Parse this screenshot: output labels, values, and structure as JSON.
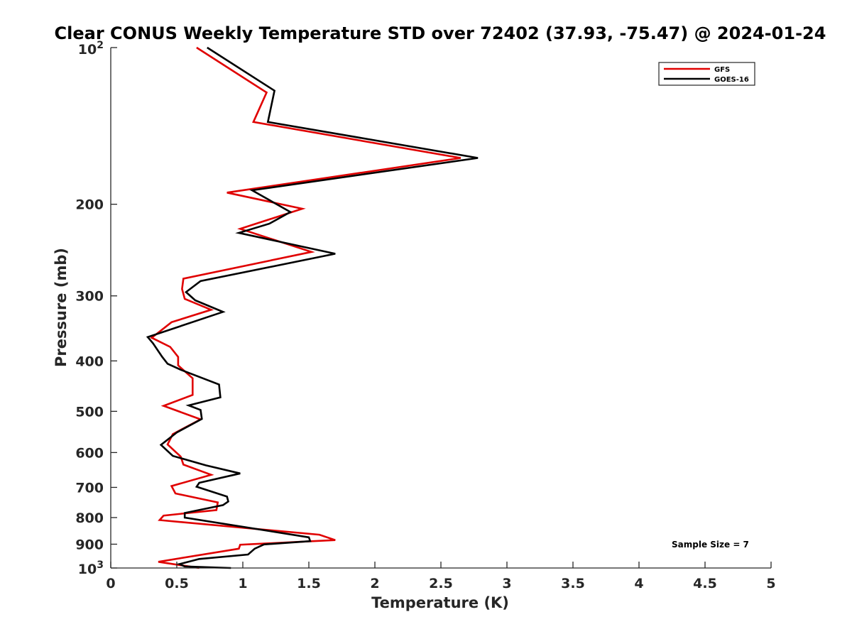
{
  "chart_data": {
    "type": "line",
    "title": "Clear CONUS Weekly Temperature STD over 72402 (37.93, -75.47) @ 2024-01-24",
    "xlabel": "Temperature (K)",
    "ylabel": "Pressure (mb)",
    "xlim": [
      0,
      5
    ],
    "ylim": [
      100,
      1000
    ],
    "y_scale": "log",
    "y_reversed": true,
    "grid": false,
    "legend_position": "top-right",
    "x_ticks": [
      0,
      0.5,
      1,
      1.5,
      2,
      2.5,
      3,
      3.5,
      4,
      4.5,
      5
    ],
    "x_tick_labels": [
      "0",
      "0.5",
      "1",
      "1.5",
      "2",
      "2.5",
      "3",
      "3.5",
      "4",
      "4.5",
      "5"
    ],
    "y_ticks": [
      200,
      300,
      400,
      500,
      600,
      700,
      800,
      900
    ],
    "y_tick_labels": [
      "200",
      "300",
      "400",
      "500",
      "600",
      "700",
      "800",
      "900"
    ],
    "y_tick_top": {
      "base": "10",
      "exp": "2",
      "value": 100
    },
    "y_tick_bottom": {
      "base": "10",
      "exp": "3",
      "value": 1000
    },
    "annotation": "Sample Size = 7",
    "series": [
      {
        "name": "GFS",
        "color": "#e00000",
        "points": [
          [
            0.65,
            100
          ],
          [
            1.18,
            122
          ],
          [
            1.08,
            139
          ],
          [
            2.65,
            163
          ],
          [
            0.88,
            190
          ],
          [
            1.45,
            204
          ],
          [
            0.98,
            223
          ],
          [
            1.52,
            247
          ],
          [
            0.55,
            278
          ],
          [
            0.54,
            291
          ],
          [
            0.56,
            304
          ],
          [
            0.76,
            319
          ],
          [
            0.46,
            337
          ],
          [
            0.31,
            361
          ],
          [
            0.45,
            376
          ],
          [
            0.51,
            393
          ],
          [
            0.51,
            408
          ],
          [
            0.62,
            432
          ],
          [
            0.62,
            465
          ],
          [
            0.4,
            488
          ],
          [
            0.68,
            518
          ],
          [
            0.47,
            553
          ],
          [
            0.43,
            579
          ],
          [
            0.53,
            611
          ],
          [
            0.55,
            633
          ],
          [
            0.76,
            662
          ],
          [
            0.46,
            696
          ],
          [
            0.49,
            719
          ],
          [
            0.81,
            748
          ],
          [
            0.8,
            774
          ],
          [
            0.4,
            793
          ],
          [
            0.37,
            809
          ],
          [
            1.58,
            863
          ],
          [
            1.7,
            884
          ],
          [
            0.98,
            902
          ],
          [
            0.97,
            918
          ],
          [
            0.36,
            973
          ],
          [
            0.67,
            1000
          ]
        ]
      },
      {
        "name": "GOES-16",
        "color": "#000000",
        "points": [
          [
            0.73,
            100
          ],
          [
            1.24,
            121
          ],
          [
            1.19,
            139
          ],
          [
            2.78,
            163
          ],
          [
            1.07,
            188
          ],
          [
            1.36,
            207
          ],
          [
            1.2,
            218
          ],
          [
            0.97,
            227
          ],
          [
            1.7,
            249
          ],
          [
            0.68,
            281
          ],
          [
            0.57,
            295
          ],
          [
            0.64,
            306
          ],
          [
            0.85,
            322
          ],
          [
            0.28,
            360
          ],
          [
            0.32,
            370
          ],
          [
            0.39,
            393
          ],
          [
            0.43,
            405
          ],
          [
            0.53,
            416
          ],
          [
            0.82,
            444
          ],
          [
            0.83,
            470
          ],
          [
            0.59,
            487
          ],
          [
            0.68,
            497
          ],
          [
            0.69,
            517
          ],
          [
            0.5,
            549
          ],
          [
            0.38,
            580
          ],
          [
            0.47,
            609
          ],
          [
            0.72,
            635
          ],
          [
            0.98,
            658
          ],
          [
            0.67,
            686
          ],
          [
            0.65,
            698
          ],
          [
            0.88,
            729
          ],
          [
            0.89,
            745
          ],
          [
            0.85,
            757
          ],
          [
            0.56,
            784
          ],
          [
            0.56,
            800
          ],
          [
            1.5,
            873
          ],
          [
            1.51,
            888
          ],
          [
            1.16,
            901
          ],
          [
            1.09,
            918
          ],
          [
            1.04,
            942
          ],
          [
            0.67,
            961
          ],
          [
            0.52,
            983
          ],
          [
            0.56,
            993
          ],
          [
            0.91,
            1000
          ]
        ]
      }
    ]
  }
}
